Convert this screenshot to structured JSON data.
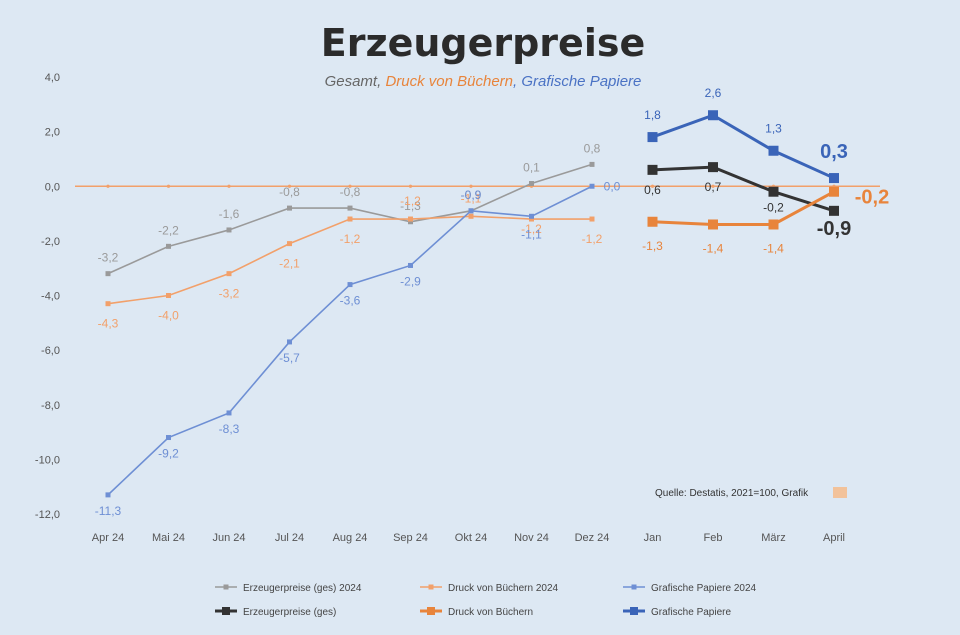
{
  "chart_data": {
    "type": "line",
    "title": "Erzeugerpreise",
    "subtitle": {
      "parts": [
        {
          "text": "Gesamt, ",
          "color": "#666666"
        },
        {
          "text": "Druck von Büchern",
          "color": "#e8843b"
        },
        {
          "text": ", Grafische Papiere",
          "color": "#4a72c4"
        }
      ]
    },
    "ylim": [
      -12,
      4
    ],
    "y_ticks": [
      4,
      2,
      0,
      -2,
      -4,
      -6,
      -8,
      -10,
      -12
    ],
    "y_tick_labels": [
      "4,0",
      "2,0",
      "0,0",
      "-2,0",
      "-4,0",
      "-6,0",
      "-8,0",
      "-10,0",
      "-12,0"
    ],
    "categories": [
      "Apr 24",
      "Mai 24",
      "Jun 24",
      "Jul 24",
      "Aug 24",
      "Sep 24",
      "Okt 24",
      "Nov 24",
      "Dez 24",
      "Jan",
      "Feb",
      "März",
      "April"
    ],
    "series": [
      {
        "name": "Erzeugerpreise (ges) 2024",
        "color": "#9a9a9a",
        "style": "thin",
        "values": [
          -3.2,
          -2.2,
          -1.6,
          -0.8,
          -0.8,
          -1.3,
          -0.9,
          0.1,
          0.8,
          null,
          null,
          null,
          null
        ],
        "labels": [
          "-3,2",
          "-2,2",
          "-1,6",
          "-0,8",
          "-0,8",
          "-1,3",
          "-0,9",
          "0,1",
          "0,8",
          null,
          null,
          null,
          null
        ]
      },
      {
        "name": "Druck von Büchern 2024",
        "color": "#f2a06a",
        "style": "thin",
        "values": [
          -4.3,
          -4.0,
          -3.2,
          -2.1,
          -1.2,
          -1.2,
          -1.1,
          -1.2,
          -1.2,
          null,
          null,
          null,
          null
        ],
        "labels": [
          "-4,3",
          "-4,0",
          "-3,2",
          "-2,1",
          "-1,2",
          "-1,2",
          "-1,1",
          "-1,2",
          "-1,2",
          null,
          null,
          null,
          null
        ]
      },
      {
        "name": "Grafische Papiere 2024",
        "color": "#6e8fd4",
        "style": "thin",
        "values": [
          -11.3,
          -9.2,
          -8.3,
          -5.7,
          -3.6,
          -2.9,
          -0.9,
          -1.1,
          0.0,
          null,
          null,
          null,
          null
        ],
        "labels": [
          "-11,3",
          "-9,2",
          "-8,3",
          "-5,7",
          "-3,6",
          "-2,9",
          "-0,9",
          "-1,1",
          "0,0",
          null,
          null,
          null,
          null
        ]
      },
      {
        "name": "Erzeugerpreise (ges)",
        "color": "#333333",
        "style": "thick",
        "values": [
          null,
          null,
          null,
          null,
          null,
          null,
          null,
          null,
          null,
          0.6,
          0.7,
          -0.2,
          -0.9
        ],
        "labels": [
          null,
          null,
          null,
          null,
          null,
          null,
          null,
          null,
          null,
          "0,6",
          "0,7",
          "-0,2",
          "-0,9"
        ]
      },
      {
        "name": "Druck von Büchern",
        "color": "#e8843b",
        "style": "thick",
        "values": [
          null,
          null,
          null,
          null,
          null,
          null,
          null,
          null,
          null,
          -1.3,
          -1.4,
          -1.4,
          -0.2
        ],
        "labels": [
          null,
          null,
          null,
          null,
          null,
          null,
          null,
          null,
          null,
          "-1,3",
          "-1,4",
          "-1,4",
          "-0,2"
        ]
      },
      {
        "name": "Grafische Papiere",
        "color": "#3a64b8",
        "style": "thick",
        "values": [
          null,
          null,
          null,
          null,
          null,
          null,
          null,
          null,
          null,
          1.8,
          2.6,
          1.3,
          0.3
        ],
        "labels": [
          null,
          null,
          null,
          null,
          null,
          null,
          null,
          null,
          null,
          "1,8",
          "2,6",
          "1,3",
          "0,3"
        ]
      }
    ],
    "zero_line_color": "#f2a06a",
    "source_text": "Quelle: Destatis, 2021=100, Grafik",
    "legend_placement": "bottom"
  }
}
